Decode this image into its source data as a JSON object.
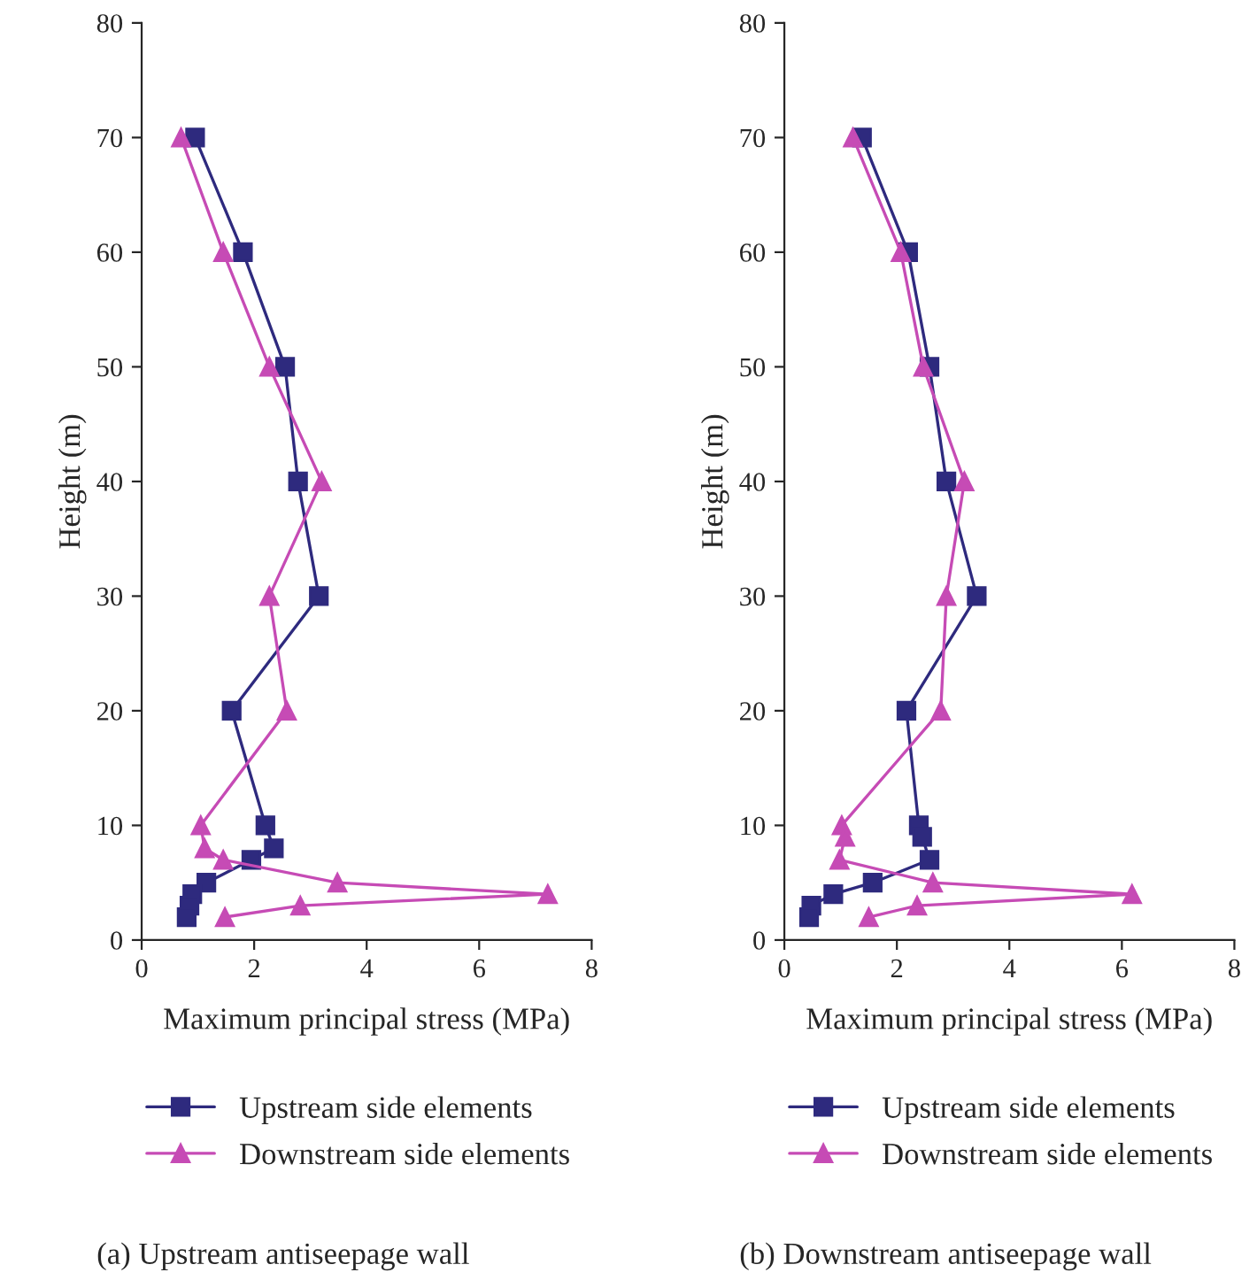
{
  "chart_data": [
    {
      "type": "line",
      "title": "(a) Upstream antiseepage wall",
      "xlabel": "Maximum principal stress (MPa)",
      "ylabel": "Height (m)",
      "xlim": [
        0,
        8
      ],
      "xticks": [
        0,
        2,
        4,
        6,
        8
      ],
      "ylim": [
        0,
        80
      ],
      "yticks": [
        0,
        10,
        20,
        30,
        40,
        50,
        60,
        70,
        80
      ],
      "grid": false,
      "legend": "bottom",
      "series": [
        {
          "name": "Upstream side elements",
          "color": "#2e2a7e",
          "marker": "square",
          "x": [
            0.95,
            1.8,
            2.55,
            2.78,
            3.15,
            1.6,
            2.2,
            2.35,
            1.95,
            1.15,
            0.9,
            0.85,
            0.8
          ],
          "values": [
            70,
            60,
            50,
            40,
            30,
            20,
            10,
            8,
            7,
            5,
            4,
            3,
            2
          ]
        },
        {
          "name": "Downstream side elements",
          "color": "#c64bb5",
          "marker": "triangle",
          "x": [
            0.7,
            1.45,
            2.27,
            3.2,
            2.27,
            2.58,
            1.05,
            1.12,
            1.45,
            3.48,
            7.22,
            2.82,
            1.48
          ],
          "values": [
            70,
            60,
            50,
            40,
            30,
            20,
            10,
            8,
            7,
            5,
            4,
            3,
            2
          ]
        }
      ]
    },
    {
      "type": "line",
      "title": "(b) Downstream antiseepage wall",
      "xlabel": "Maximum principal stress (MPa)",
      "ylabel": "Height (m)",
      "xlim": [
        0,
        8
      ],
      "xticks": [
        0,
        2,
        4,
        6,
        8
      ],
      "ylim": [
        0,
        80
      ],
      "yticks": [
        0,
        10,
        20,
        30,
        40,
        50,
        60,
        70,
        80
      ],
      "grid": false,
      "legend": "bottom",
      "series": [
        {
          "name": "Upstream side elements",
          "color": "#2e2a7e",
          "marker": "square",
          "x": [
            1.38,
            2.2,
            2.58,
            2.88,
            3.42,
            2.17,
            2.39,
            2.45,
            2.58,
            1.57,
            0.87,
            0.48,
            0.44
          ],
          "values": [
            70,
            60,
            50,
            40,
            30,
            20,
            10,
            9,
            7,
            5,
            4,
            3,
            2
          ]
        },
        {
          "name": "Downstream side elements",
          "color": "#c64bb5",
          "marker": "triangle",
          "x": [
            1.22,
            2.07,
            2.47,
            3.2,
            2.88,
            2.78,
            1.02,
            1.08,
            0.98,
            2.64,
            6.18,
            2.36,
            1.5
          ],
          "values": [
            70,
            60,
            50,
            40,
            30,
            20,
            10,
            9,
            7,
            5,
            4,
            3,
            2
          ]
        }
      ]
    }
  ]
}
